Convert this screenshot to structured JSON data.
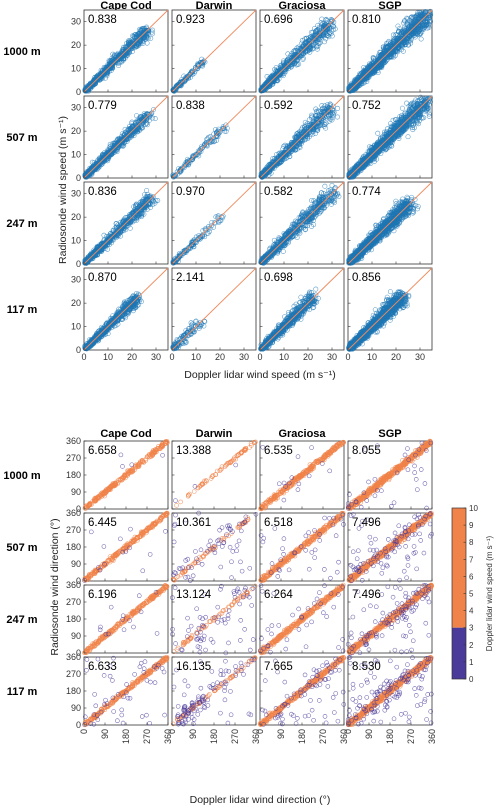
{
  "chart_data": [
    {
      "type": "scatter",
      "name": "wind-speed-comparison",
      "xlabel": "Doppler lidar wind speed (m s⁻¹)",
      "ylabel": "Radiosonde wind speed (m s⁻¹)",
      "xlim": [
        0,
        35
      ],
      "ylim": [
        0,
        35
      ],
      "xticks": [
        "0",
        "10",
        "20",
        "30"
      ],
      "yticks": [
        "0",
        "10",
        "20",
        "30"
      ],
      "columns": [
        "Cape Cod",
        "Darwin",
        "Graciosa",
        "SGP"
      ],
      "rows": [
        "1000 m",
        "507 m",
        "247 m",
        "117 m"
      ],
      "stats": [
        [
          "0.838",
          "0.923",
          "0.696",
          "0.810"
        ],
        [
          "0.779",
          "0.838",
          "0.592",
          "0.752"
        ],
        [
          "0.836",
          "0.970",
          "0.582",
          "0.774"
        ],
        [
          "0.870",
          "2.141",
          "0.698",
          "0.856"
        ]
      ],
      "max_speed": [
        [
          26,
          13,
          29,
          33
        ],
        [
          27,
          22,
          30,
          33
        ],
        [
          28,
          20,
          30,
          25
        ],
        [
          22,
          11,
          22,
          22
        ]
      ],
      "grid": false,
      "marker_color": "#1f77b4",
      "reference_line_color": "#f08a5d"
    },
    {
      "type": "scatter",
      "name": "wind-direction-comparison",
      "xlabel": "Doppler lidar wind direction (°)",
      "ylabel": "Radiosonde wind direction (°)",
      "xlim": [
        0,
        360
      ],
      "ylim": [
        0,
        360
      ],
      "xticks": [
        "0",
        "90",
        "180",
        "270",
        "360"
      ],
      "yticks": [
        "0",
        "90",
        "180",
        "270",
        "360"
      ],
      "columns": [
        "Cape Cod",
        "Darwin",
        "Graciosa",
        "SGP"
      ],
      "rows": [
        "1000 m",
        "507 m",
        "247 m",
        "117 m"
      ],
      "stats": [
        [
          "6.658",
          "13.388",
          "6.535",
          "8.055"
        ],
        [
          "6.445",
          "10.361",
          "6.518",
          "7.496"
        ],
        [
          "6.196",
          "13.124",
          "6.264",
          "7.496"
        ],
        [
          "6.633",
          "16.135",
          "7.665",
          "8.530"
        ]
      ],
      "grid": false,
      "colorbar": {
        "label": "Doppler lidar wind speed (m s⁻¹)",
        "ticks": [
          "0",
          "1",
          "2",
          "3",
          "4",
          "5",
          "6",
          "7",
          "8",
          "9",
          "10"
        ],
        "range": [
          0,
          10
        ],
        "low_range": [
          0,
          3
        ],
        "low_color": "#4a3a9a",
        "high_range": [
          3,
          10
        ],
        "high_color": "#f0834a"
      }
    }
  ]
}
